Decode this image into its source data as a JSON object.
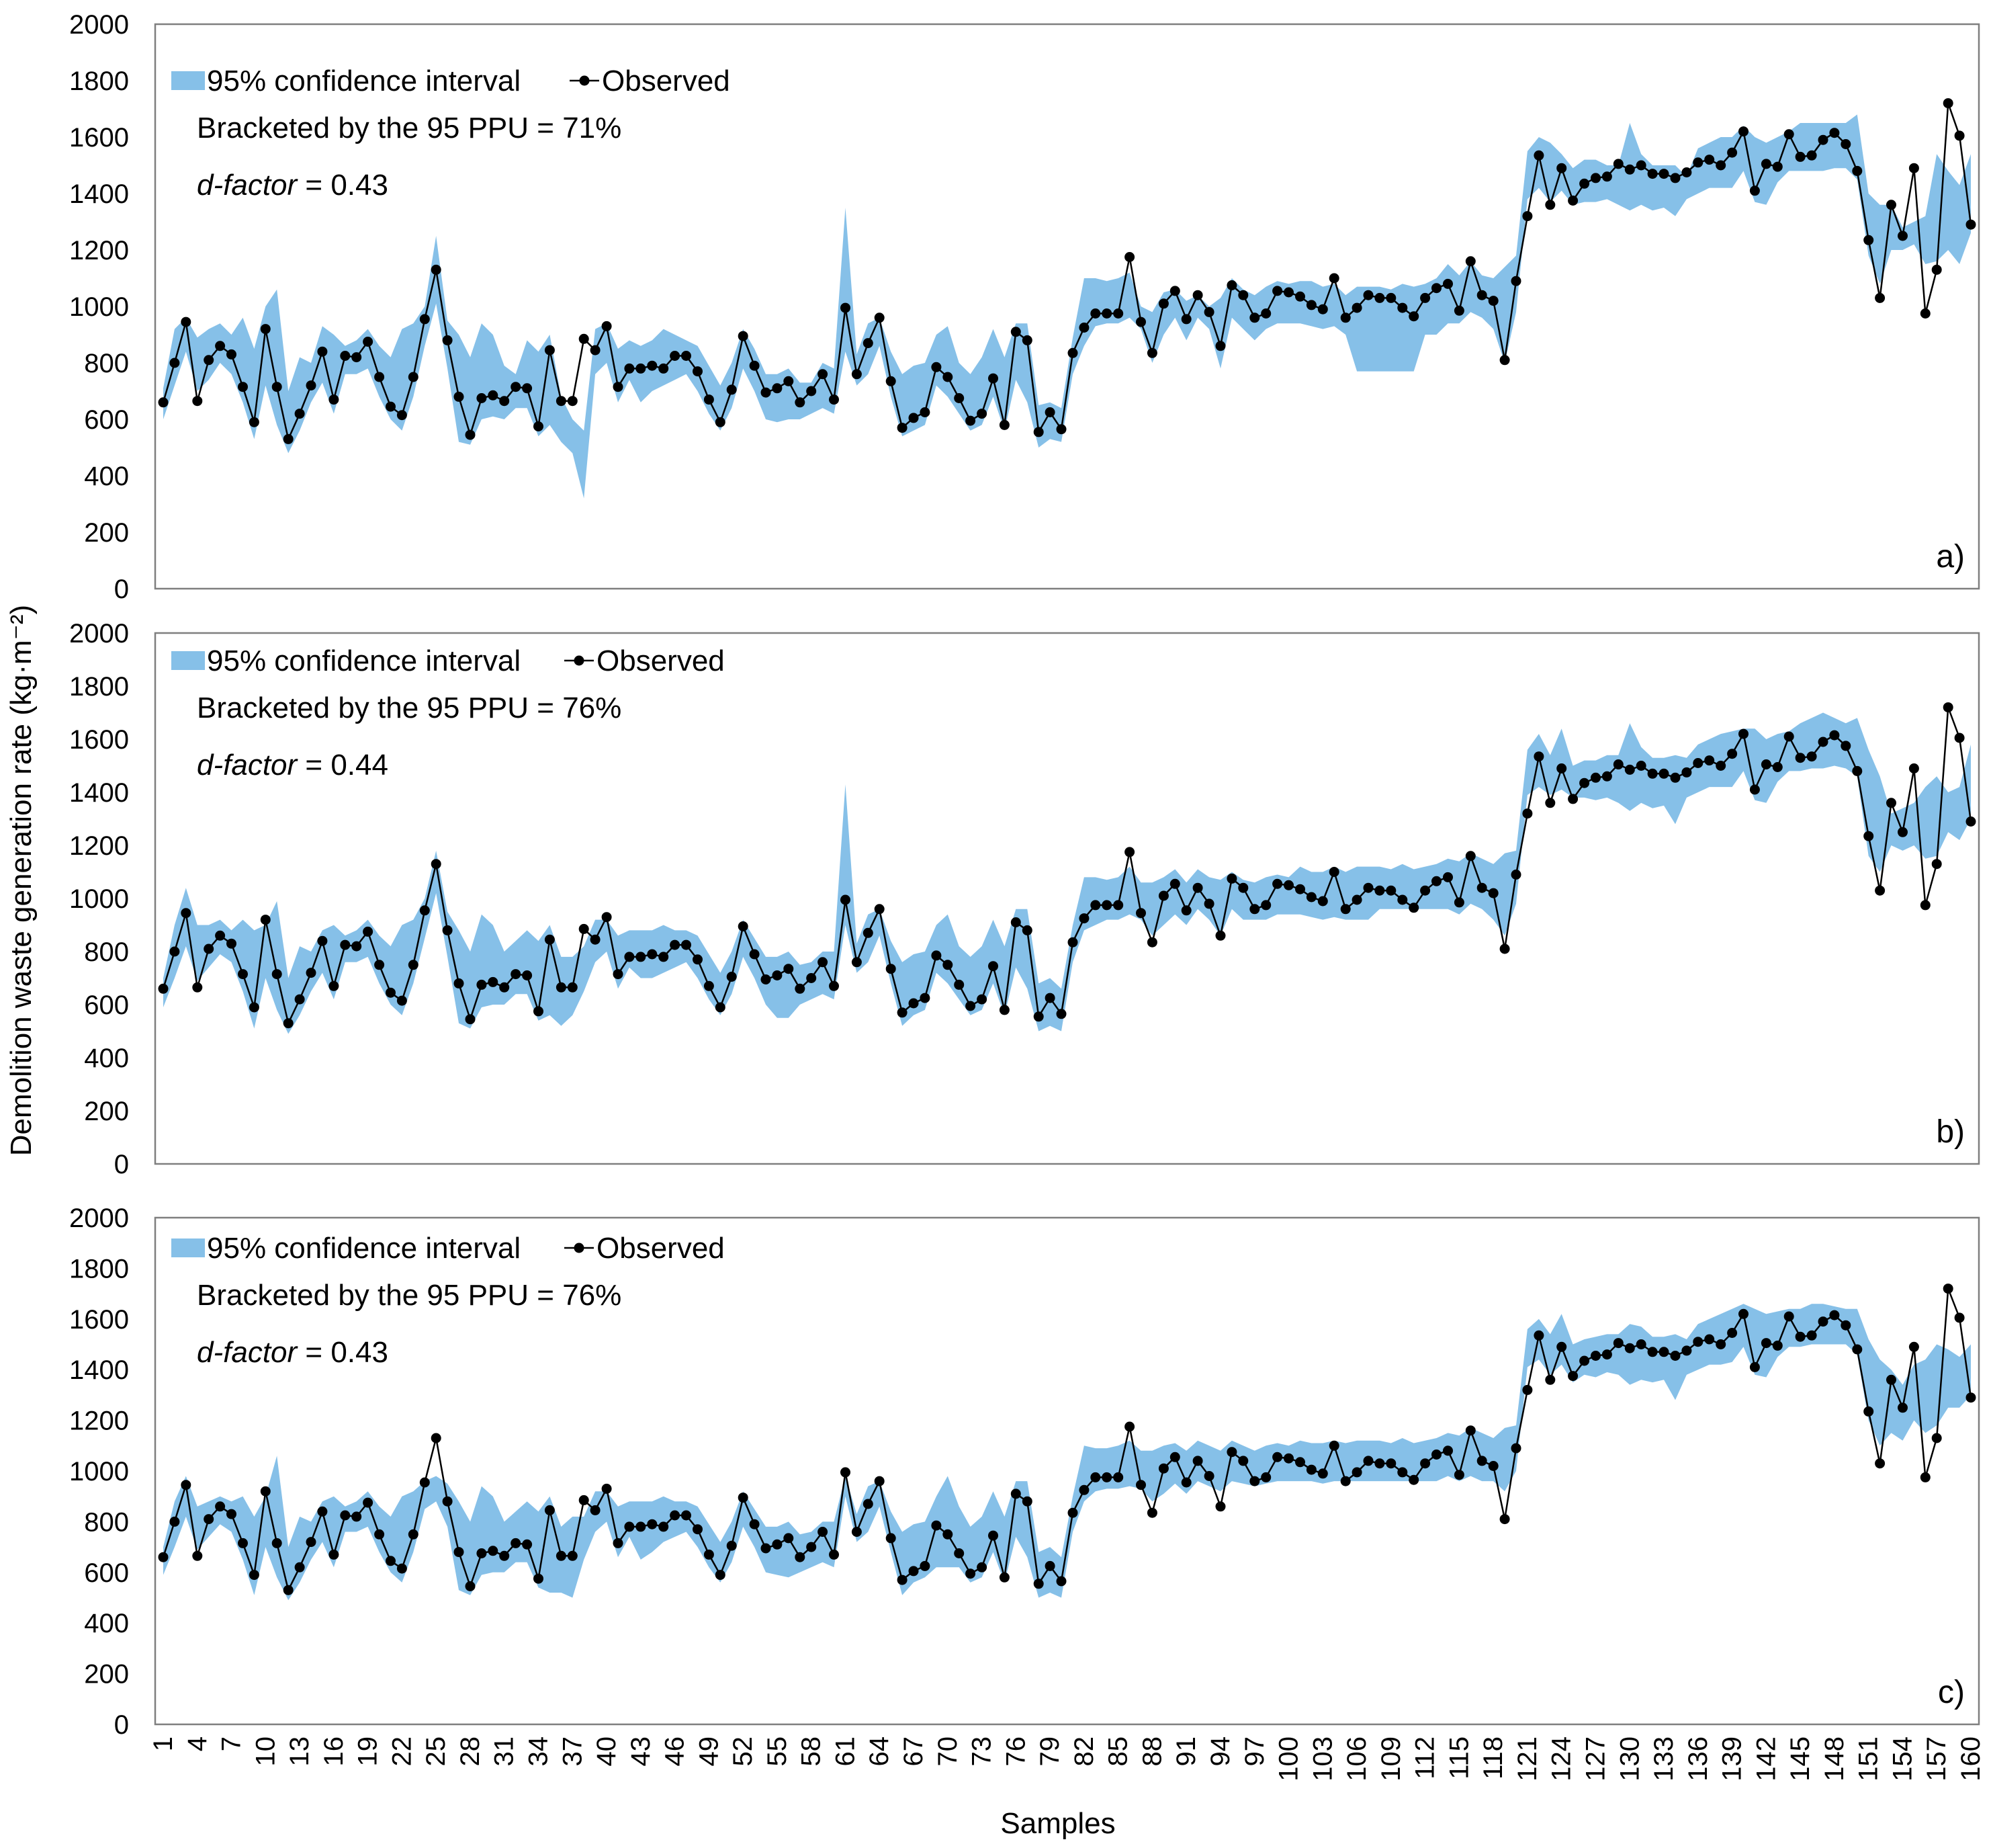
{
  "ylabel": "Demolition waste generation rate (kg·m⁻²)",
  "xlabel": "Samples",
  "x_tick_labels": [
    1,
    4,
    7,
    10,
    13,
    16,
    19,
    22,
    25,
    28,
    31,
    34,
    37,
    40,
    43,
    46,
    49,
    52,
    55,
    58,
    61,
    64,
    67,
    70,
    73,
    76,
    79,
    82,
    85,
    88,
    91,
    94,
    97,
    100,
    103,
    106,
    109,
    112,
    115,
    118,
    121,
    124,
    127,
    130,
    133,
    136,
    139,
    142,
    145,
    148,
    151,
    154,
    157,
    160
  ],
  "y_tick_labels": [
    0,
    200,
    400,
    600,
    800,
    1000,
    1200,
    1400,
    1600,
    1800,
    2000
  ],
  "legend": {
    "ci_label": "95% confidence interval",
    "obs_label": "Observed"
  },
  "colors": {
    "ci_fill": "#86c0e8",
    "observed": "#000000"
  },
  "panels": [
    {
      "tag": "a)",
      "ppu_text": "Bracketed by the 95 PPU = 71%",
      "dfactor_label": "d-factor",
      "dfactor_value": " = 0.43"
    },
    {
      "tag": "b)",
      "ppu_text": "Bracketed by the 95 PPU =  76%",
      "dfactor_label": "d-factor",
      "dfactor_value": " = 0.44"
    },
    {
      "tag": "c)",
      "ppu_text": "Bracketed by the 95 PPU =  76%",
      "dfactor_label": "d-factor",
      "dfactor_value": " = 0.43"
    }
  ],
  "chart_data": {
    "type": "line",
    "x_range": [
      1,
      160
    ],
    "ylim": [
      0,
      2000
    ],
    "legend_position": "top-left",
    "grid": false,
    "observed": [
      660,
      800,
      945,
      665,
      810,
      860,
      830,
      715,
      590,
      920,
      715,
      530,
      620,
      720,
      840,
      670,
      825,
      820,
      875,
      750,
      645,
      615,
      750,
      955,
      1130,
      880,
      680,
      545,
      675,
      685,
      665,
      715,
      710,
      575,
      845,
      665,
      665,
      885,
      845,
      930,
      715,
      780,
      780,
      790,
      780,
      825,
      825,
      770,
      670,
      590,
      705,
      895,
      790,
      695,
      710,
      735,
      660,
      700,
      760,
      670,
      995,
      760,
      870,
      960,
      735,
      570,
      605,
      625,
      785,
      750,
      675,
      595,
      620,
      745,
      580,
      910,
      880,
      555,
      625,
      565,
      835,
      925,
      975,
      975,
      975,
      1175,
      945,
      835,
      1010,
      1055,
      955,
      1040,
      980,
      860,
      1075,
      1040,
      960,
      975,
      1055,
      1050,
      1035,
      1005,
      990,
      1100,
      960,
      995,
      1040,
      1030,
      1030,
      995,
      965,
      1030,
      1065,
      1080,
      985,
      1160,
      1040,
      1020,
      810,
      1090,
      1320,
      1535,
      1360,
      1490,
      1375,
      1435,
      1455,
      1460,
      1505,
      1485,
      1500,
      1470,
      1470,
      1455,
      1475,
      1510,
      1520,
      1500,
      1545,
      1620,
      1410,
      1505,
      1495,
      1610,
      1530,
      1535,
      1590,
      1615,
      1575,
      1480,
      1235,
      1030,
      1360,
      1250,
      1490,
      975,
      1130,
      1720,
      1605,
      1290
    ],
    "series": [
      {
        "panel": "a)",
        "ci_lower": [
          600,
          720,
          840,
          700,
          740,
          800,
          760,
          660,
          530,
          720,
          580,
          480,
          560,
          660,
          730,
          620,
          760,
          760,
          780,
          680,
          600,
          560,
          680,
          860,
          1010,
          780,
          520,
          510,
          600,
          610,
          600,
          640,
          640,
          540,
          580,
          520,
          480,
          320,
          760,
          800,
          660,
          740,
          660,
          700,
          720,
          740,
          760,
          700,
          620,
          560,
          640,
          780,
          700,
          600,
          590,
          600,
          600,
          620,
          640,
          620,
          840,
          720,
          760,
          860,
          680,
          540,
          560,
          580,
          720,
          680,
          620,
          560,
          580,
          680,
          560,
          740,
          660,
          500,
          530,
          520,
          760,
          860,
          930,
          940,
          940,
          960,
          920,
          800,
          900,
          960,
          880,
          960,
          920,
          780,
          960,
          920,
          880,
          920,
          940,
          940,
          940,
          930,
          920,
          930,
          900,
          770,
          770,
          770,
          770,
          770,
          770,
          900,
          900,
          940,
          940,
          980,
          960,
          920,
          800,
          980,
          1380,
          1420,
          1370,
          1410,
          1360,
          1370,
          1370,
          1380,
          1360,
          1340,
          1360,
          1340,
          1350,
          1320,
          1380,
          1400,
          1420,
          1420,
          1420,
          1480,
          1370,
          1360,
          1440,
          1480,
          1480,
          1480,
          1480,
          1490,
          1490,
          1450,
          1180,
          1080,
          1200,
          1200,
          1220,
          1150,
          1160,
          1200,
          1150,
          1260
        ],
        "ci_upper": [
          710,
          920,
          960,
          890,
          920,
          940,
          900,
          960,
          850,
          1000,
          1060,
          700,
          820,
          800,
          930,
          900,
          860,
          880,
          920,
          860,
          820,
          920,
          940,
          1000,
          1250,
          950,
          900,
          820,
          940,
          900,
          790,
          760,
          880,
          840,
          900,
          680,
          600,
          560,
          920,
          940,
          850,
          880,
          860,
          880,
          920,
          900,
          880,
          860,
          790,
          720,
          800,
          920,
          850,
          760,
          760,
          780,
          730,
          730,
          800,
          780,
          1350,
          830,
          940,
          960,
          840,
          760,
          790,
          800,
          900,
          930,
          800,
          760,
          820,
          920,
          820,
          940,
          940,
          650,
          660,
          640,
          890,
          1100,
          1100,
          1090,
          1100,
          1120,
          1000,
          980,
          1050,
          1060,
          1020,
          1040,
          1000,
          1030,
          1100,
          1060,
          1040,
          1070,
          1090,
          1080,
          1090,
          1090,
          1070,
          1080,
          1040,
          1070,
          1070,
          1070,
          1060,
          1080,
          1070,
          1080,
          1100,
          1150,
          1110,
          1160,
          1110,
          1100,
          1140,
          1180,
          1550,
          1600,
          1580,
          1540,
          1490,
          1520,
          1520,
          1500,
          1500,
          1650,
          1540,
          1500,
          1500,
          1500,
          1460,
          1560,
          1580,
          1600,
          1600,
          1640,
          1600,
          1580,
          1600,
          1620,
          1650,
          1650,
          1650,
          1650,
          1650,
          1680,
          1400,
          1360,
          1360,
          1280,
          1300,
          1320,
          1540,
          1480,
          1430,
          1540
        ]
      },
      {
        "panel": "b)",
        "ci_lower": [
          590,
          700,
          820,
          690,
          740,
          790,
          760,
          650,
          510,
          700,
          580,
          490,
          560,
          650,
          720,
          620,
          760,
          760,
          780,
          680,
          600,
          560,
          680,
          850,
          1020,
          780,
          530,
          510,
          590,
          600,
          600,
          640,
          640,
          540,
          560,
          520,
          560,
          650,
          760,
          800,
          660,
          740,
          700,
          700,
          720,
          740,
          760,
          700,
          620,
          560,
          640,
          780,
          700,
          600,
          550,
          550,
          600,
          620,
          640,
          620,
          900,
          720,
          760,
          860,
          680,
          520,
          560,
          580,
          720,
          680,
          620,
          560,
          580,
          680,
          560,
          740,
          660,
          500,
          520,
          500,
          760,
          880,
          900,
          920,
          920,
          940,
          920,
          860,
          900,
          940,
          900,
          960,
          920,
          860,
          960,
          920,
          920,
          920,
          940,
          940,
          940,
          930,
          920,
          930,
          920,
          920,
          920,
          960,
          960,
          960,
          960,
          960,
          960,
          960,
          940,
          980,
          960,
          920,
          860,
          980,
          1390,
          1420,
          1390,
          1410,
          1380,
          1380,
          1370,
          1380,
          1360,
          1330,
          1360,
          1340,
          1350,
          1280,
          1380,
          1400,
          1420,
          1420,
          1420,
          1480,
          1370,
          1360,
          1440,
          1480,
          1480,
          1490,
          1490,
          1500,
          1490,
          1460,
          1160,
          1100,
          1200,
          1180,
          1200,
          1150,
          1160,
          1250,
          1220,
          1300
        ],
        "ci_upper": [
          700,
          900,
          1040,
          900,
          900,
          920,
          880,
          920,
          880,
          900,
          990,
          700,
          820,
          800,
          880,
          900,
          860,
          880,
          920,
          860,
          820,
          900,
          920,
          1000,
          1180,
          950,
          880,
          800,
          940,
          900,
          800,
          840,
          880,
          840,
          900,
          780,
          780,
          820,
          920,
          920,
          860,
          880,
          880,
          880,
          900,
          880,
          880,
          860,
          790,
          720,
          800,
          920,
          850,
          780,
          780,
          800,
          750,
          760,
          800,
          800,
          1430,
          830,
          940,
          960,
          840,
          760,
          790,
          800,
          900,
          940,
          820,
          780,
          820,
          920,
          820,
          960,
          960,
          680,
          700,
          660,
          900,
          1080,
          1080,
          1070,
          1080,
          1120,
          1060,
          1060,
          1080,
          1110,
          1060,
          1110,
          1080,
          1070,
          1100,
          1070,
          1060,
          1080,
          1090,
          1080,
          1120,
          1100,
          1100,
          1120,
          1100,
          1120,
          1120,
          1120,
          1110,
          1130,
          1110,
          1120,
          1130,
          1150,
          1140,
          1170,
          1150,
          1130,
          1170,
          1180,
          1560,
          1620,
          1540,
          1640,
          1500,
          1520,
          1520,
          1540,
          1540,
          1660,
          1570,
          1530,
          1530,
          1540,
          1530,
          1580,
          1600,
          1620,
          1630,
          1640,
          1640,
          1600,
          1620,
          1630,
          1660,
          1680,
          1700,
          1680,
          1660,
          1680,
          1560,
          1460,
          1320,
          1340,
          1360,
          1420,
          1460,
          1400,
          1420,
          1580
        ]
      },
      {
        "panel": "c)",
        "ci_lower": [
          590,
          700,
          820,
          690,
          740,
          790,
          760,
          650,
          510,
          700,
          580,
          490,
          560,
          650,
          720,
          620,
          760,
          760,
          780,
          680,
          600,
          560,
          680,
          850,
          880,
          780,
          530,
          510,
          590,
          600,
          600,
          640,
          640,
          540,
          520,
          520,
          500,
          650,
          760,
          800,
          660,
          740,
          650,
          680,
          720,
          740,
          760,
          700,
          620,
          560,
          640,
          780,
          700,
          600,
          590,
          580,
          600,
          620,
          640,
          620,
          900,
          720,
          760,
          860,
          680,
          510,
          560,
          580,
          620,
          620,
          620,
          560,
          580,
          680,
          560,
          740,
          660,
          500,
          520,
          500,
          760,
          880,
          920,
          930,
          930,
          940,
          930,
          880,
          910,
          950,
          910,
          960,
          940,
          920,
          960,
          950,
          940,
          950,
          960,
          960,
          960,
          960,
          950,
          960,
          960,
          960,
          960,
          960,
          960,
          960,
          960,
          960,
          960,
          980,
          960,
          980,
          960,
          960,
          920,
          1000,
          1410,
          1440,
          1380,
          1420,
          1350,
          1380,
          1370,
          1390,
          1380,
          1340,
          1360,
          1350,
          1360,
          1280,
          1380,
          1400,
          1420,
          1420,
          1430,
          1490,
          1380,
          1370,
          1450,
          1490,
          1490,
          1500,
          1500,
          1500,
          1500,
          1460,
          1200,
          1100,
          1150,
          1120,
          1200,
          1150,
          1180,
          1250,
          1250,
          1300
        ],
        "ci_upper": [
          700,
          880,
          980,
          860,
          880,
          900,
          880,
          900,
          820,
          900,
          1060,
          700,
          820,
          800,
          880,
          900,
          860,
          880,
          920,
          860,
          820,
          900,
          920,
          960,
          980,
          950,
          880,
          800,
          940,
          900,
          800,
          840,
          880,
          840,
          900,
          780,
          820,
          820,
          920,
          920,
          860,
          880,
          880,
          880,
          900,
          880,
          880,
          860,
          790,
          720,
          800,
          920,
          850,
          780,
          780,
          800,
          750,
          760,
          800,
          800,
          980,
          830,
          940,
          960,
          840,
          760,
          790,
          800,
          900,
          980,
          860,
          780,
          820,
          920,
          820,
          960,
          960,
          680,
          700,
          660,
          900,
          1100,
          1090,
          1090,
          1100,
          1120,
          1080,
          1080,
          1100,
          1110,
          1080,
          1120,
          1100,
          1080,
          1120,
          1100,
          1080,
          1100,
          1110,
          1100,
          1120,
          1110,
          1110,
          1120,
          1110,
          1120,
          1120,
          1120,
          1110,
          1130,
          1110,
          1120,
          1130,
          1150,
          1140,
          1170,
          1150,
          1130,
          1170,
          1180,
          1560,
          1600,
          1540,
          1620,
          1500,
          1520,
          1530,
          1540,
          1540,
          1580,
          1570,
          1530,
          1530,
          1540,
          1520,
          1580,
          1600,
          1620,
          1640,
          1660,
          1640,
          1620,
          1630,
          1640,
          1640,
          1660,
          1660,
          1650,
          1640,
          1640,
          1520,
          1440,
          1400,
          1340,
          1420,
          1440,
          1500,
          1480,
          1450,
          1500
        ]
      }
    ]
  }
}
